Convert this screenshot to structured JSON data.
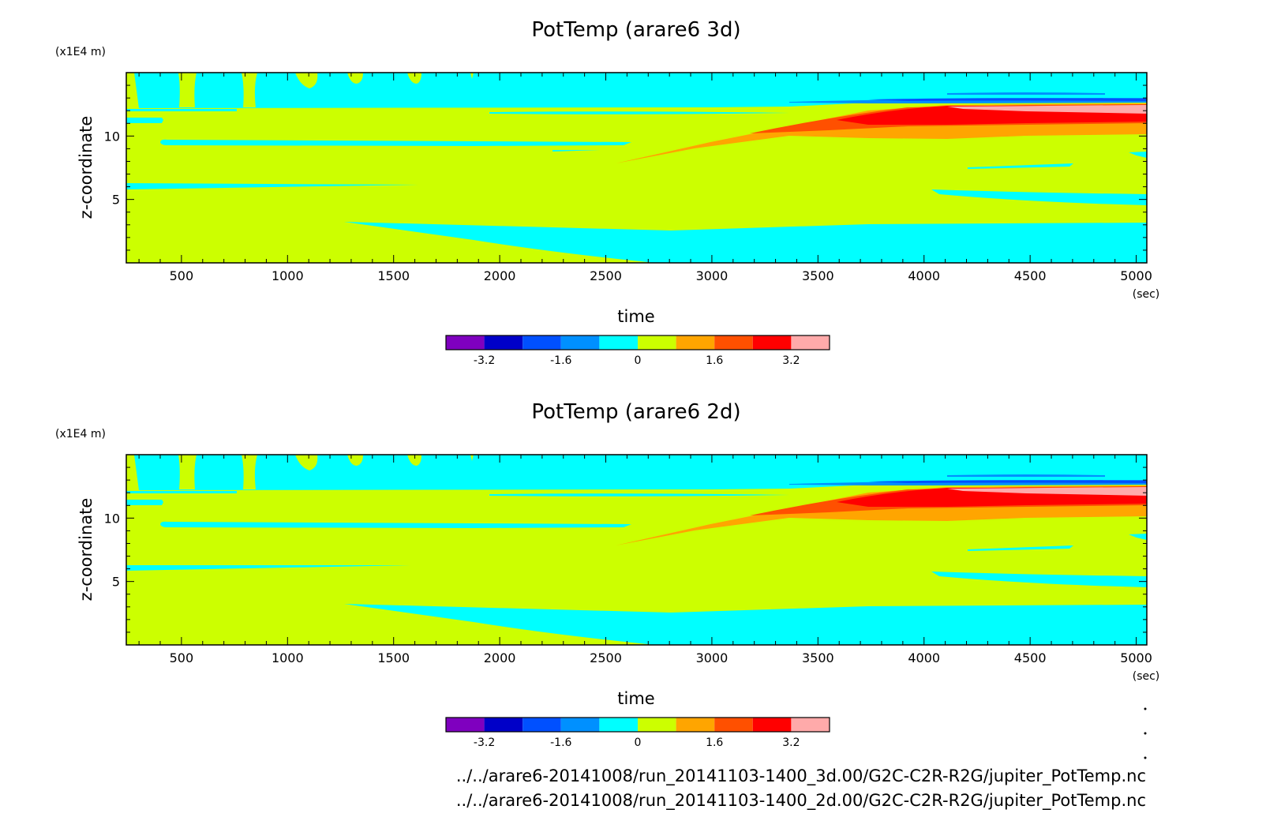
{
  "chart_data": [
    {
      "type": "heatmap",
      "title": "PotTemp (arare6 3d)",
      "xlabel": "time",
      "x_unit": "(sec)",
      "ylabel": "z-coordinate",
      "y_unit": "(x1E4 m)",
      "xlim": [
        240,
        5050
      ],
      "ylim": [
        0,
        15
      ],
      "x_ticks": [
        "500",
        "1000",
        "1500",
        "2000",
        "2500",
        "3000",
        "3500",
        "4000",
        "4500",
        "5000"
      ],
      "x_tick_values": [
        500,
        1000,
        1500,
        2000,
        2500,
        3000,
        3500,
        4000,
        4500,
        5000
      ],
      "y_ticks": [
        "5",
        "10"
      ],
      "y_tick_values": [
        5,
        10
      ],
      "colorbar": {
        "colors": [
          "#7f00bf",
          "#0000c8",
          "#0050ff",
          "#0090ff",
          "#00ffff",
          "#ccff00",
          "#ffa500",
          "#ff5000",
          "#ff0000",
          "#ffaaaa"
        ],
        "labels": [
          "-3.2",
          "-1.6",
          "0",
          "1.6",
          "3.2"
        ],
        "label_values": [
          -3.2,
          -1.6,
          0,
          1.6,
          3.2
        ],
        "range": [
          -4.0,
          4.0
        ]
      }
    },
    {
      "type": "heatmap",
      "title": "PotTemp (arare6 2d)",
      "xlabel": "time",
      "x_unit": "(sec)",
      "ylabel": "z-coordinate",
      "y_unit": "(x1E4 m)",
      "xlim": [
        240,
        5050
      ],
      "ylim": [
        0,
        15
      ],
      "x_ticks": [
        "500",
        "1000",
        "1500",
        "2000",
        "2500",
        "3000",
        "3500",
        "4000",
        "4500",
        "5000"
      ],
      "x_tick_values": [
        500,
        1000,
        1500,
        2000,
        2500,
        3000,
        3500,
        4000,
        4500,
        5000
      ],
      "y_ticks": [
        "5",
        "10"
      ],
      "y_tick_values": [
        5,
        10
      ],
      "colorbar": {
        "colors": [
          "#7f00bf",
          "#0000c8",
          "#0050ff",
          "#0090ff",
          "#00ffff",
          "#ccff00",
          "#ffa500",
          "#ff5000",
          "#ff0000",
          "#ffaaaa"
        ],
        "labels": [
          "-3.2",
          "-1.6",
          "0",
          "1.6",
          "3.2"
        ],
        "label_values": [
          -3.2,
          -1.6,
          0,
          1.6,
          3.2
        ],
        "range": [
          -4.0,
          4.0
        ]
      }
    }
  ],
  "files": [
    "../../arare6-20141008/run_20141103-1400_3d.00/G2C-C2R-R2G/jupiter_PotTemp.nc",
    "../../arare6-20141008/run_20141103-1400_2d.00/G2C-C2R-R2G/jupiter_PotTemp.nc"
  ],
  "colors": {
    "background_field": "#ccff00",
    "cyan": "#00ffff",
    "orange": "#ffa500",
    "red_orange": "#ff5000",
    "red": "#ff0000",
    "pink": "#ffaaaa",
    "blue": "#0050ff",
    "mid_blue": "#0090ff"
  }
}
